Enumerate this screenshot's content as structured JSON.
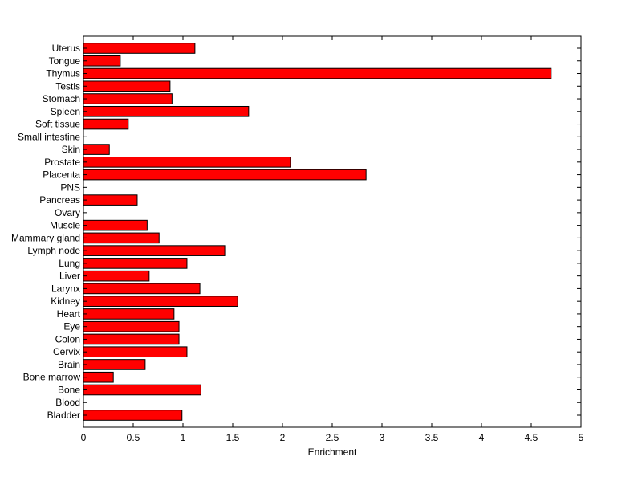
{
  "chart_data": {
    "type": "bar",
    "orientation": "horizontal",
    "categories": [
      "Uterus",
      "Tongue",
      "Thymus",
      "Testis",
      "Stomach",
      "Spleen",
      "Soft tissue",
      "Small intestine",
      "Skin",
      "Prostate",
      "Placenta",
      "PNS",
      "Pancreas",
      "Ovary",
      "Muscle",
      "Mammary gland",
      "Lymph node",
      "Lung",
      "Liver",
      "Larynx",
      "Kidney",
      "Heart",
      "Eye",
      "Colon",
      "Cervix",
      "Brain",
      "Bone marrow",
      "Bone",
      "Blood",
      "Bladder"
    ],
    "values": [
      1.12,
      0.37,
      4.7,
      0.87,
      0.89,
      1.66,
      0.45,
      0,
      0.26,
      2.08,
      2.84,
      0,
      0.54,
      0,
      0.64,
      0.76,
      1.42,
      1.04,
      0.66,
      1.17,
      1.55,
      0.91,
      0.96,
      0.96,
      1.04,
      0.62,
      0.3,
      1.18,
      0,
      0.99
    ],
    "xlabel": "Enrichment",
    "ylabel": "",
    "title": "",
    "xlim": [
      0,
      5
    ],
    "xticks": [
      "0",
      "0.5",
      "1",
      "1.5",
      "2",
      "2.5",
      "3",
      "3.5",
      "4",
      "4.5",
      "5"
    ],
    "grid": false,
    "bar_color": "#ff0000",
    "bar_edge_color": "#000000"
  }
}
